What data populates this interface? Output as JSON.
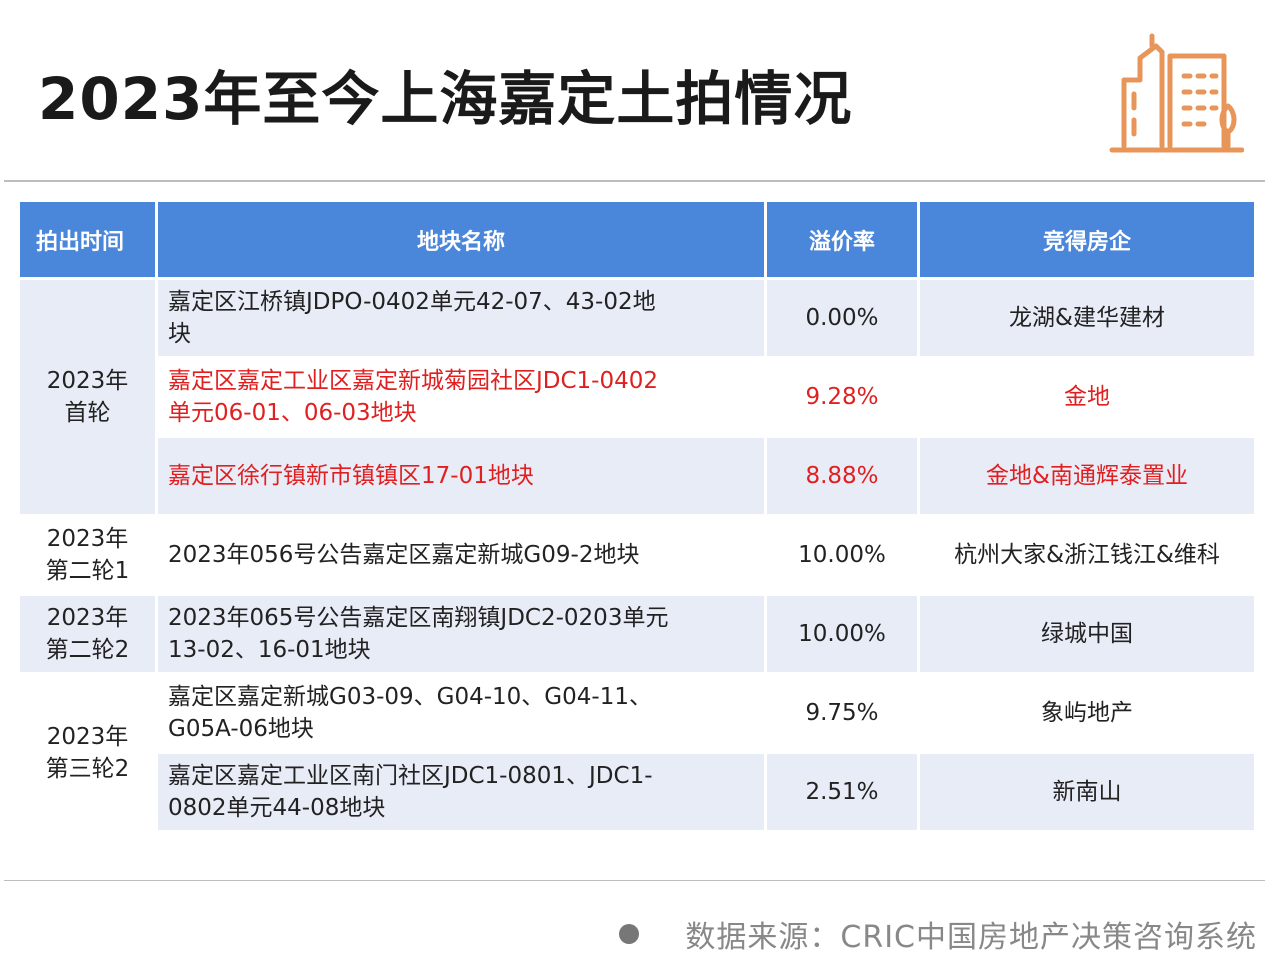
{
  "title": "2023年至今上海嘉定土拍情况",
  "icon": "city-buildings-icon",
  "colors": {
    "header_bg": "#4a86d9",
    "row_shade": "#e8ecf7",
    "highlight_text": "#e02020",
    "icon_stroke": "#e8955a"
  },
  "table": {
    "headers": [
      "拍出时间",
      "地块名称",
      "溢价率",
      "竞得房企"
    ],
    "groups": [
      {
        "time": "2023年首轮",
        "time_lines": [
          "2023年",
          "首轮"
        ]
      },
      {
        "time": "2023年第二轮1",
        "time_lines": [
          "2023年",
          "第二轮1"
        ]
      },
      {
        "time": "2023年第二轮2",
        "time_lines": [
          "2023年",
          "第二轮2"
        ]
      },
      {
        "time": "2023年第三轮2",
        "time_lines": [
          "2023年",
          "第三轮2"
        ]
      }
    ],
    "rows": [
      {
        "name_lines": [
          "嘉定区江桥镇JDPO-0402单元42-07、43-02地",
          "块"
        ],
        "rate": "0.00%",
        "company": "龙湖&建华建材",
        "highlight": false
      },
      {
        "name_lines": [
          "嘉定区嘉定工业区嘉定新城菊园社区JDC1-0402",
          "单元06-01、06-03地块"
        ],
        "rate": "9.28%",
        "company": "金地",
        "highlight": true
      },
      {
        "name_lines": [
          "嘉定区徐行镇新市镇镇区17-01地块"
        ],
        "rate": "8.88%",
        "company": "金地&南通辉泰置业",
        "highlight": true
      },
      {
        "name_lines": [
          "2023年056号公告嘉定区嘉定新城G09-2地块"
        ],
        "rate": "10.00%",
        "company": "杭州大家&浙江钱江&维科",
        "highlight": false
      },
      {
        "name_lines": [
          "2023年065号公告嘉定区南翔镇JDC2-0203单元",
          "13-02、16-01地块"
        ],
        "rate": "10.00%",
        "company": "绿城中国",
        "highlight": false
      },
      {
        "name_lines": [
          "嘉定区嘉定新城G03-09、G04-10、G04-11、",
          "G05A-06地块"
        ],
        "rate": "9.75%",
        "company": "象屿地产",
        "highlight": false
      },
      {
        "name_lines": [
          "嘉定区嘉定工业区南门社区JDC1-0801、JDC1-",
          "0802单元44-08地块"
        ],
        "rate": "2.51%",
        "company": "新南山",
        "highlight": false
      }
    ]
  },
  "footer": {
    "source": "数据来源：CRIC中国房地产决策咨询系统"
  }
}
